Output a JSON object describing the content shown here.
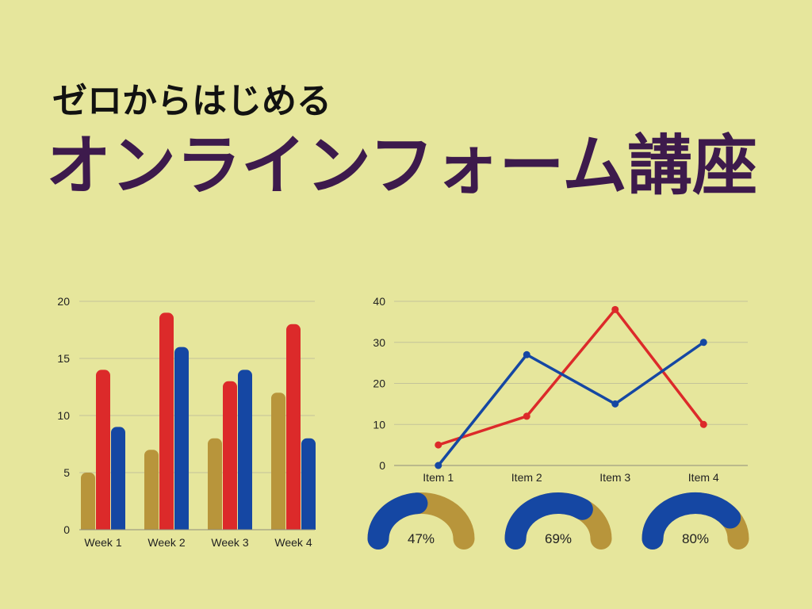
{
  "title": {
    "line1": "ゼロからはじめる",
    "line2": "オンラインフォーム講座"
  },
  "colors": {
    "background": "#e6e69c",
    "title_line1": "#111111",
    "title_line2": "#3d1a4c",
    "gold": "#b8953b",
    "red": "#dc2a2a",
    "blue": "#1547a3"
  },
  "chart_data": [
    {
      "type": "bar",
      "categories": [
        "Week 1",
        "Week 2",
        "Week 3",
        "Week 4"
      ],
      "series": [
        {
          "values": [
            5,
            7,
            8,
            12
          ],
          "color": "#b8953b"
        },
        {
          "values": [
            14,
            19,
            13,
            18
          ],
          "color": "#dc2a2a"
        },
        {
          "values": [
            9,
            16,
            14,
            8
          ],
          "color": "#1547a3"
        }
      ],
      "ylim": [
        0,
        20
      ],
      "yticks": [
        0,
        5,
        10,
        15,
        20
      ],
      "grid": true,
      "legend": "none"
    },
    {
      "type": "line",
      "categories": [
        "Item 1",
        "Item 2",
        "Item 3",
        "Item 4"
      ],
      "series": [
        {
          "values": [
            5,
            12,
            38,
            10
          ],
          "color": "#dc2a2a",
          "markers": true
        },
        {
          "values": [
            0,
            27,
            15,
            30
          ],
          "color": "#1547a3",
          "markers": true
        }
      ],
      "ylim": [
        0,
        40
      ],
      "yticks": [
        0,
        10,
        20,
        30,
        40
      ],
      "grid": true,
      "legend": "none"
    },
    {
      "type": "pie",
      "variant": "semicircle-gauge",
      "fill_color": "#1547a3",
      "track_color": "#b8953b",
      "gauges": [
        {
          "value": 47,
          "label": "47%"
        },
        {
          "value": 69,
          "label": "69%"
        },
        {
          "value": 80,
          "label": "80%"
        }
      ]
    }
  ]
}
